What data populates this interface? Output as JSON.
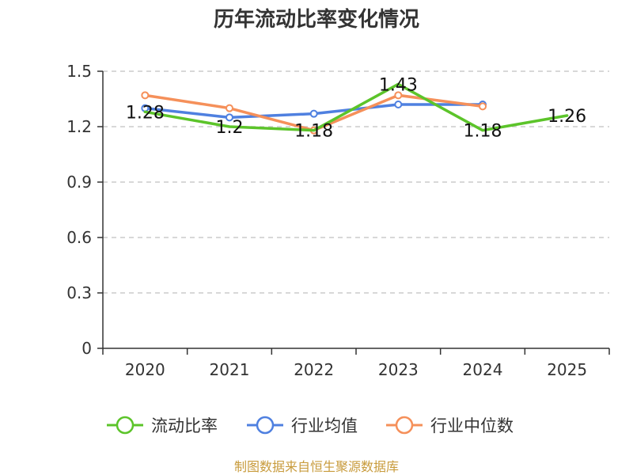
{
  "colors": {
    "axis": "#333333",
    "grid": "#cccccc",
    "footer": "#c89b3c"
  },
  "footer": "制图数据来自恒生聚源数据库",
  "chart_data": {
    "type": "line",
    "title": "历年流动比率变化情况",
    "xlabel": "",
    "ylabel": "",
    "categories": [
      "2020",
      "2021",
      "2022",
      "2023",
      "2024",
      "2025"
    ],
    "ylim": [
      0,
      1.5
    ],
    "yticks": [
      "0",
      "0.3",
      "0.6",
      "0.9",
      "1.2",
      "1.5"
    ],
    "grid": true,
    "legend_position": "bottom",
    "series": [
      {
        "name": "流动比率",
        "color": "#5cc42a",
        "values": [
          1.28,
          1.2,
          1.18,
          1.43,
          1.18,
          1.26
        ],
        "labels": [
          "1.28",
          "1.2",
          "1.18",
          "1.43",
          "1.18",
          "1.26"
        ],
        "markers": false
      },
      {
        "name": "行业均值",
        "color": "#4f80e0",
        "values": [
          1.3,
          1.25,
          1.27,
          1.32,
          1.32,
          null
        ],
        "markers": true
      },
      {
        "name": "行业中位数",
        "color": "#f5905a",
        "values": [
          1.37,
          1.3,
          1.18,
          1.37,
          1.31,
          null
        ],
        "markers": true
      }
    ]
  }
}
